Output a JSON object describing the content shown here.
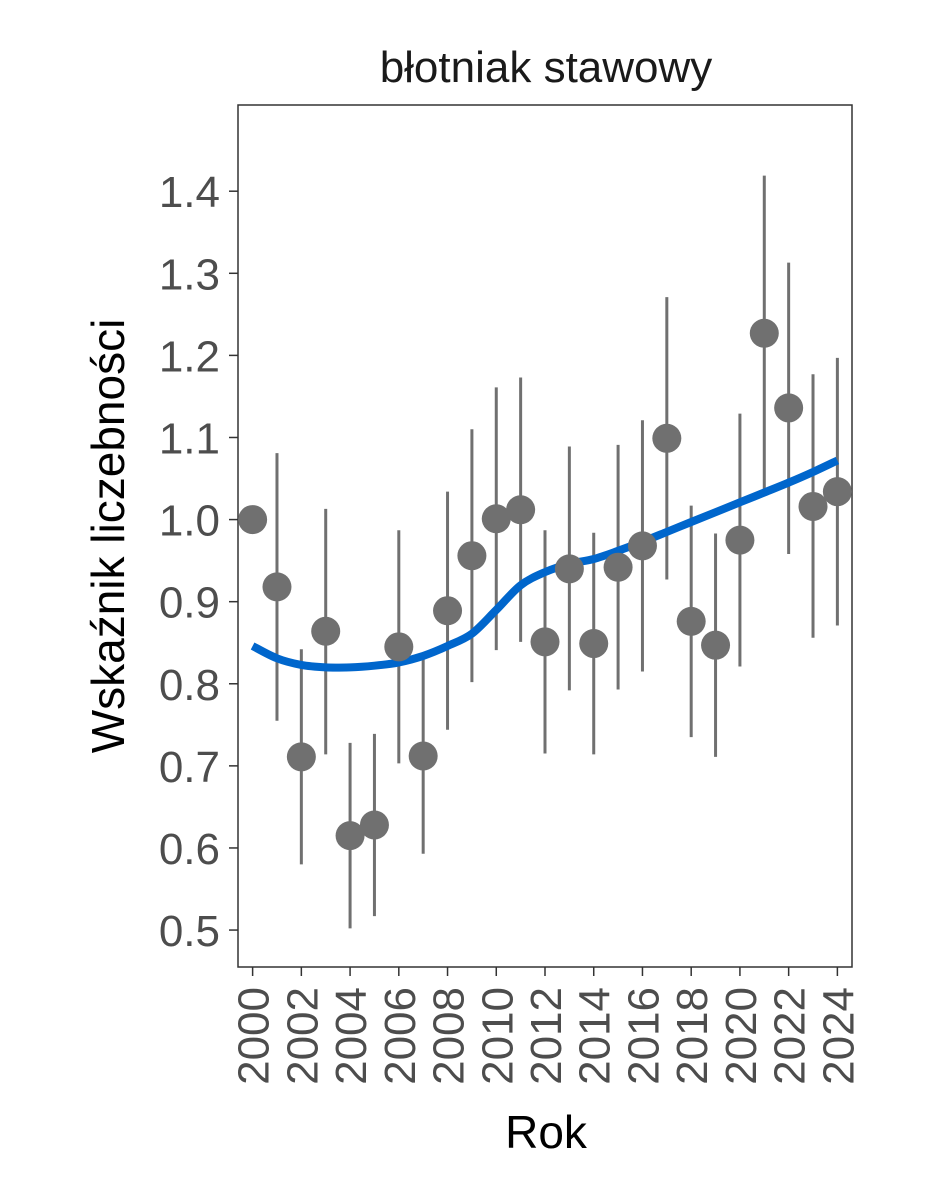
{
  "chart_data": {
    "type": "scatter",
    "title": "błotniak stawowy",
    "xlabel": "Rok",
    "ylabel": "Wskaźnik liczebności",
    "xlim": [
      1999.4,
      2024.6
    ],
    "ylim": [
      0.455,
      1.505
    ],
    "x_ticks": [
      2000,
      2002,
      2004,
      2006,
      2008,
      2010,
      2012,
      2014,
      2016,
      2018,
      2020,
      2022,
      2024
    ],
    "x_tick_labels": [
      "2000",
      "2002",
      "2004",
      "2006",
      "2008",
      "2010",
      "2012",
      "2014",
      "2016",
      "2018",
      "2020",
      "2022",
      "2024"
    ],
    "y_ticks": [
      0.5,
      0.6,
      0.7,
      0.8,
      0.9,
      1.0,
      1.1,
      1.2,
      1.3,
      1.4
    ],
    "y_tick_labels": [
      "0.5",
      "0.6",
      "0.7",
      "0.8",
      "0.9",
      "1.0",
      "1.1",
      "1.2",
      "1.3",
      "1.4"
    ],
    "grid": false,
    "legend": "none",
    "series": [
      {
        "type": "points_with_error_bars",
        "color": "#707070",
        "points": [
          {
            "x": 2000,
            "y": 1.0,
            "lo": null,
            "hi": null
          },
          {
            "x": 2001,
            "y": 0.918,
            "lo": 0.755,
            "hi": 1.081
          },
          {
            "x": 2002,
            "y": 0.711,
            "lo": 0.58,
            "hi": 0.842
          },
          {
            "x": 2003,
            "y": 0.864,
            "lo": 0.714,
            "hi": 1.013
          },
          {
            "x": 2004,
            "y": 0.615,
            "lo": 0.502,
            "hi": 0.728
          },
          {
            "x": 2005,
            "y": 0.628,
            "lo": 0.517,
            "hi": 0.739
          },
          {
            "x": 2006,
            "y": 0.845,
            "lo": 0.703,
            "hi": 0.987
          },
          {
            "x": 2007,
            "y": 0.712,
            "lo": 0.593,
            "hi": 0.832
          },
          {
            "x": 2008,
            "y": 0.889,
            "lo": 0.744,
            "hi": 1.034
          },
          {
            "x": 2009,
            "y": 0.956,
            "lo": 0.802,
            "hi": 1.11
          },
          {
            "x": 2010,
            "y": 1.001,
            "lo": 0.841,
            "hi": 1.161
          },
          {
            "x": 2011,
            "y": 1.012,
            "lo": 0.851,
            "hi": 1.173
          },
          {
            "x": 2012,
            "y": 0.851,
            "lo": 0.715,
            "hi": 0.987
          },
          {
            "x": 2013,
            "y": 0.94,
            "lo": 0.792,
            "hi": 1.089
          },
          {
            "x": 2014,
            "y": 0.849,
            "lo": 0.714,
            "hi": 0.984
          },
          {
            "x": 2015,
            "y": 0.942,
            "lo": 0.793,
            "hi": 1.091
          },
          {
            "x": 2016,
            "y": 0.968,
            "lo": 0.815,
            "hi": 1.121
          },
          {
            "x": 2017,
            "y": 1.099,
            "lo": 0.927,
            "hi": 1.271
          },
          {
            "x": 2018,
            "y": 0.876,
            "lo": 0.735,
            "hi": 1.017
          },
          {
            "x": 2019,
            "y": 0.847,
            "lo": 0.711,
            "hi": 0.983
          },
          {
            "x": 2020,
            "y": 0.975,
            "lo": 0.821,
            "hi": 1.129
          },
          {
            "x": 2021,
            "y": 1.227,
            "lo": 1.035,
            "hi": 1.419
          },
          {
            "x": 2022,
            "y": 1.136,
            "lo": 0.958,
            "hi": 1.313
          },
          {
            "x": 2023,
            "y": 1.016,
            "lo": 0.856,
            "hi": 1.177
          },
          {
            "x": 2024,
            "y": 1.034,
            "lo": 0.871,
            "hi": 1.197
          }
        ]
      },
      {
        "type": "line",
        "color": "#0066CC",
        "x": [
          2000,
          2001,
          2002,
          2003,
          2004,
          2005,
          2006,
          2007,
          2008,
          2009,
          2010,
          2011,
          2012,
          2013,
          2014,
          2015,
          2016,
          2017,
          2018,
          2019,
          2020,
          2021,
          2022,
          2023,
          2024
        ],
        "y": [
          0.846,
          0.831,
          0.823,
          0.82,
          0.82,
          0.822,
          0.826,
          0.834,
          0.846,
          0.861,
          0.89,
          0.92,
          0.936,
          0.946,
          0.952,
          0.962,
          0.973,
          0.985,
          0.997,
          1.009,
          1.021,
          1.033,
          1.045,
          1.058,
          1.072
        ]
      }
    ]
  }
}
